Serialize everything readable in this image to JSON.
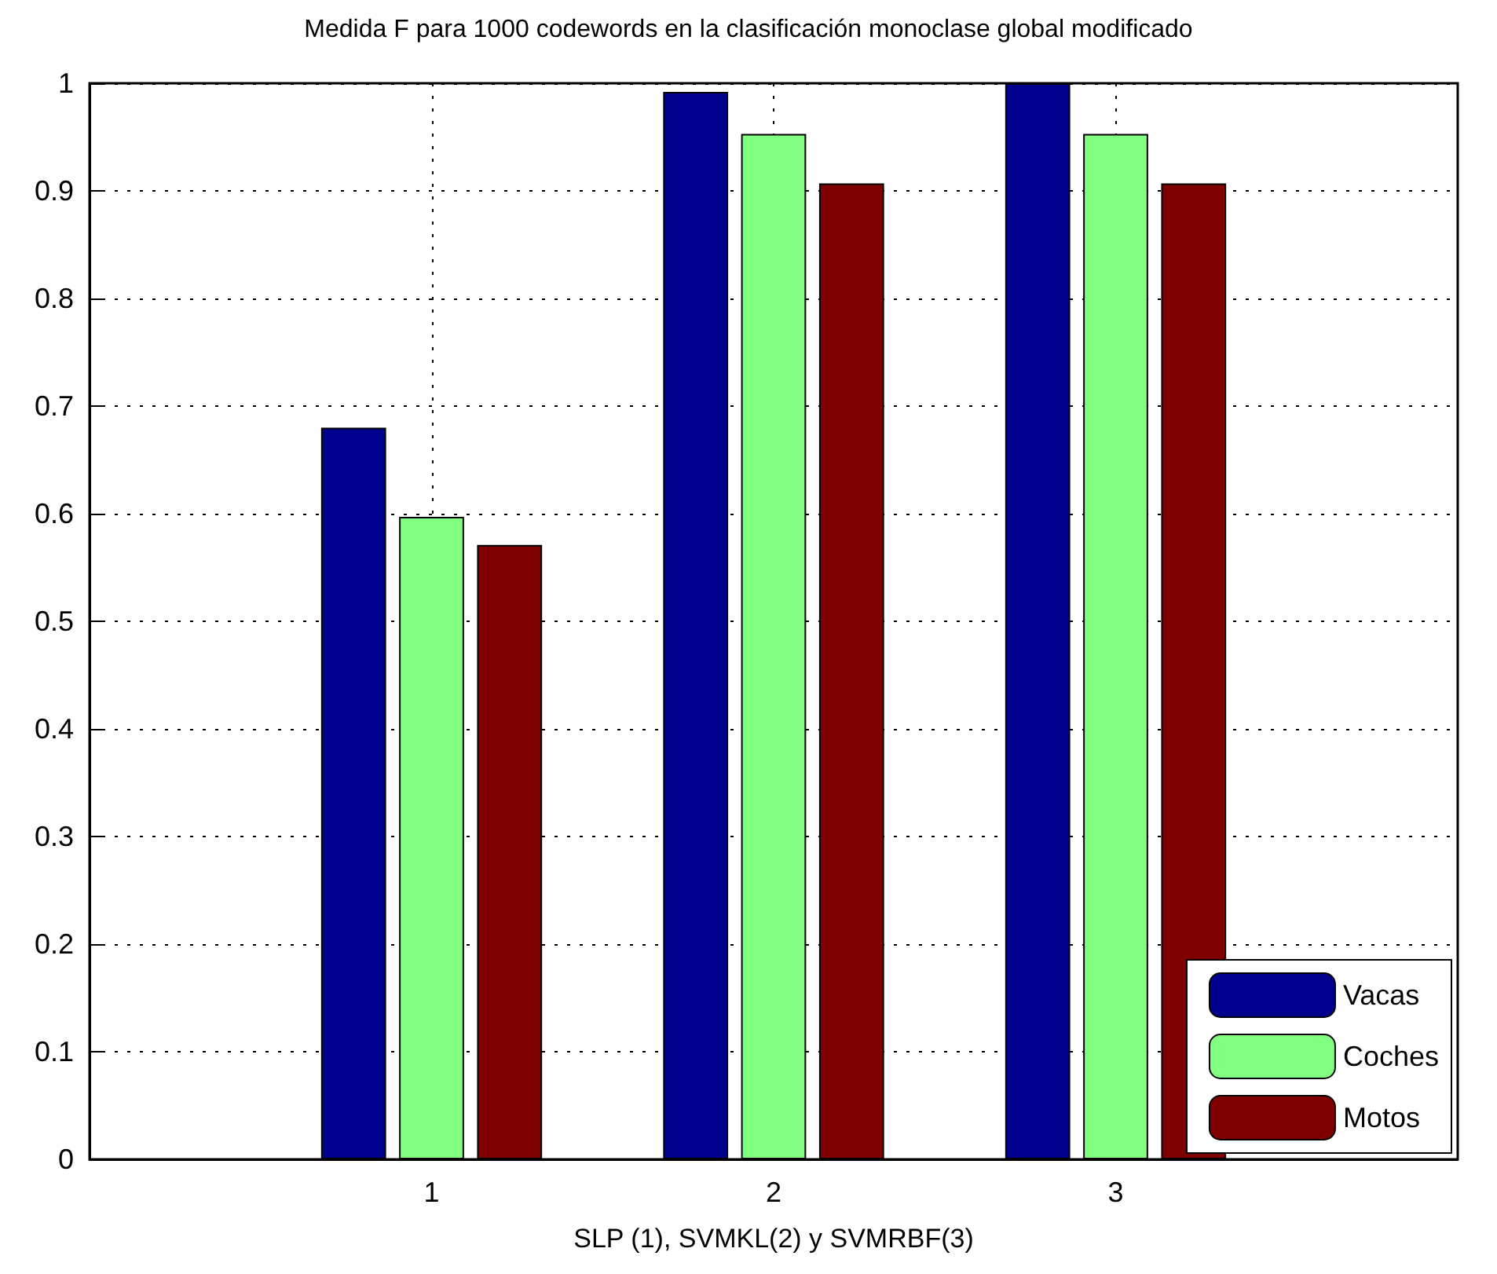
{
  "chart_data": {
    "type": "bar",
    "title": "Medida F para 1000 codewords en la clasificación monoclase global modificado",
    "xlabel": "SLP (1), SVMKL(2) y SVMRBF(3)",
    "x": [
      1,
      2,
      3
    ],
    "xlim": [
      0,
      4
    ],
    "xticks": [
      1,
      2,
      3
    ],
    "ylim": [
      0,
      1
    ],
    "yticks": [
      0,
      0.1,
      0.2,
      0.3,
      0.4,
      0.5,
      0.6,
      0.7,
      0.8,
      0.9,
      1
    ],
    "series": [
      {
        "name": "Vacas",
        "color": "#00008f",
        "values": [
          0.68,
          0.992,
          1.0
        ]
      },
      {
        "name": "Coches",
        "color": "#80ff80",
        "values": [
          0.597,
          0.953,
          0.953
        ]
      },
      {
        "name": "Motos",
        "color": "#800000",
        "values": [
          0.571,
          0.907,
          0.907
        ]
      }
    ],
    "grid": true,
    "legend": "bottom right"
  }
}
